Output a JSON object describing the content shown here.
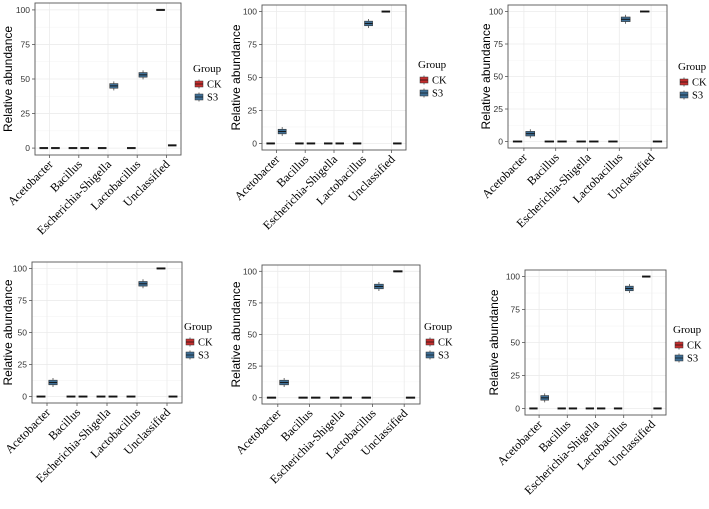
{
  "chart_data": [
    {
      "type": "boxplot",
      "title": "",
      "xlabel": "",
      "ylabel": "Relative abundance",
      "ylim": [
        0,
        100
      ],
      "yticks": [
        "0",
        "25",
        "50",
        "75",
        "100"
      ],
      "categories": [
        "Acetobacter",
        "Bacillus",
        "Escherichia-Shigella",
        "Lactobacillus",
        "Unclassified"
      ],
      "legend": {
        "title": "Group",
        "position": "right"
      },
      "series": [
        {
          "name": "CK",
          "color": "#c62e2e",
          "values": [
            0,
            0,
            0,
            0,
            100
          ]
        },
        {
          "name": "S3",
          "color": "#3f6f96",
          "values": [
            0,
            0,
            45,
            53,
            2
          ]
        }
      ]
    },
    {
      "type": "boxplot",
      "title": "",
      "xlabel": "",
      "ylabel": "Relative abundance",
      "ylim": [
        0,
        100
      ],
      "yticks": [
        "0",
        "25",
        "50",
        "75",
        "100"
      ],
      "categories": [
        "Acetobacter",
        "Bacillus",
        "Escherichia-Shigella",
        "Lactobacillus",
        "Unclassified"
      ],
      "legend": {
        "title": "Group",
        "position": "right"
      },
      "series": [
        {
          "name": "CK",
          "color": "#c62e2e",
          "values": [
            0,
            0,
            0,
            0,
            100
          ]
        },
        {
          "name": "S3",
          "color": "#3f6f96",
          "values": [
            9,
            0,
            0,
            91,
            0
          ]
        }
      ]
    },
    {
      "type": "boxplot",
      "title": "",
      "xlabel": "",
      "ylabel": "Relative abundance",
      "ylim": [
        0,
        100
      ],
      "yticks": [
        "0",
        "25",
        "50",
        "75",
        "100"
      ],
      "categories": [
        "Acetobacter",
        "Bacillus",
        "Escherichia-Shigella",
        "Lactobacillus",
        "Unclassified"
      ],
      "legend": {
        "title": "Group",
        "position": "right"
      },
      "series": [
        {
          "name": "CK",
          "color": "#c62e2e",
          "values": [
            0,
            0,
            0,
            0,
            100
          ]
        },
        {
          "name": "S3",
          "color": "#3f6f96",
          "values": [
            6,
            0,
            0,
            94,
            0
          ]
        }
      ]
    },
    {
      "type": "boxplot",
      "title": "",
      "xlabel": "",
      "ylabel": "Relative abundance",
      "ylim": [
        0,
        100
      ],
      "yticks": [
        "0",
        "25",
        "50",
        "75",
        "100"
      ],
      "categories": [
        "Acetobacter",
        "Bacillus",
        "Escherichia-Shigella",
        "Lactobacillus",
        "Unclassified"
      ],
      "legend": {
        "title": "Group",
        "position": "right"
      },
      "series": [
        {
          "name": "CK",
          "color": "#c62e2e",
          "values": [
            0,
            0,
            0,
            0,
            100
          ]
        },
        {
          "name": "S3",
          "color": "#3f6f96",
          "values": [
            11,
            0,
            0,
            88,
            0
          ]
        }
      ]
    },
    {
      "type": "boxplot",
      "title": "",
      "xlabel": "",
      "ylabel": "Relative abundance",
      "ylim": [
        0,
        100
      ],
      "yticks": [
        "0",
        "25",
        "50",
        "75",
        "100"
      ],
      "categories": [
        "Acetobacter",
        "Bacillus",
        "Escherichia-Shigella",
        "Lactobacillus",
        "Unclassified"
      ],
      "legend": {
        "title": "Group",
        "position": "right"
      },
      "series": [
        {
          "name": "CK",
          "color": "#c62e2e",
          "values": [
            0,
            0,
            0,
            0,
            100
          ]
        },
        {
          "name": "S3",
          "color": "#3f6f96",
          "values": [
            12,
            0,
            0,
            88,
            0
          ]
        }
      ]
    },
    {
      "type": "boxplot",
      "title": "",
      "xlabel": "",
      "ylabel": "Relative abundance",
      "ylim": [
        0,
        100
      ],
      "yticks": [
        "0",
        "25",
        "50",
        "75",
        "100"
      ],
      "categories": [
        "Acetobacter",
        "Bacillus",
        "Escherichia-Shigella",
        "Lactobacillus",
        "Unclassified"
      ],
      "legend": {
        "title": "Group",
        "position": "right"
      },
      "series": [
        {
          "name": "CK",
          "color": "#c62e2e",
          "values": [
            0,
            0,
            0,
            0,
            100
          ]
        },
        {
          "name": "S3",
          "color": "#3f6f96",
          "values": [
            8,
            0,
            0,
            91,
            0
          ]
        }
      ]
    }
  ]
}
